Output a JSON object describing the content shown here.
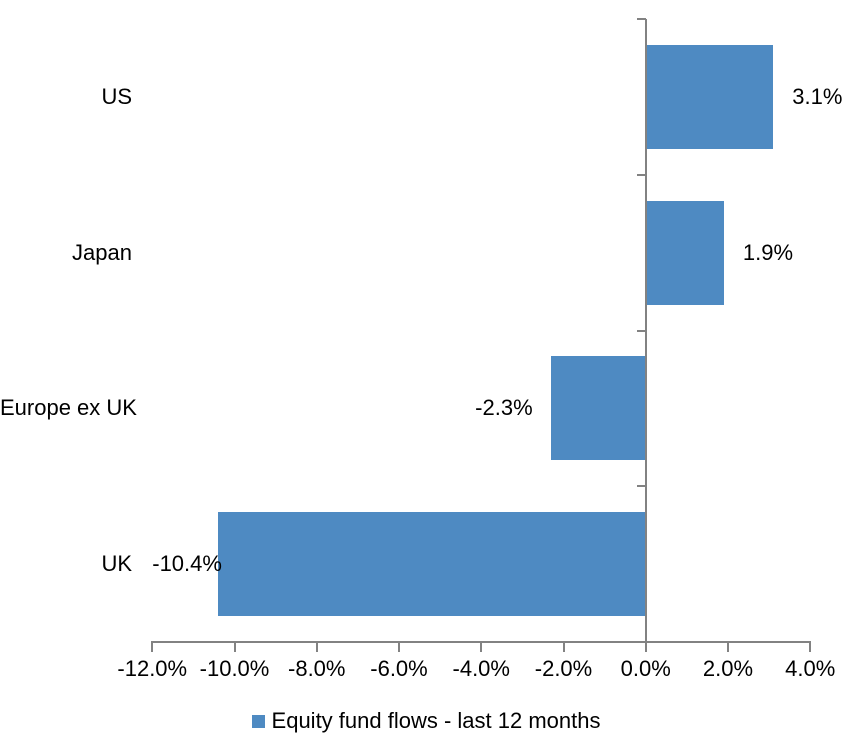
{
  "chart_data": {
    "type": "bar",
    "orientation": "horizontal",
    "title": "",
    "categories": [
      "US",
      "Japan",
      "Europe ex UK",
      "UK"
    ],
    "values": [
      3.1,
      1.9,
      -2.3,
      -10.4
    ],
    "value_labels": [
      "3.1%",
      "1.9%",
      "-2.3%",
      "-10.4%"
    ],
    "series_name": "Equity fund flows - last 12 months",
    "xlabel": "",
    "ylabel": "",
    "xlim": [
      -12,
      4
    ],
    "x_tick_step": 2,
    "x_tick_labels": [
      "-12.0%",
      "-10.0%",
      "-8.0%",
      "-6.0%",
      "-4.0%",
      "-2.0%",
      "0.0%",
      "2.0%",
      "4.0%"
    ],
    "grid": false,
    "legend_position": "bottom",
    "colors": {
      "bar": "#4E8AC2",
      "axis": "#828282",
      "text": "#000000",
      "background": "#FFFFFF"
    }
  }
}
